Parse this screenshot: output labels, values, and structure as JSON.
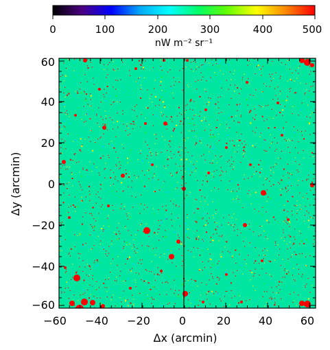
{
  "colorbar": {
    "tick_labels": [
      "0",
      "100",
      "200",
      "300",
      "400",
      "500"
    ],
    "range": [
      0,
      500
    ],
    "unit_label": "nW m⁻² sr⁻¹",
    "colormap": [
      "#000000",
      "#4b0082",
      "#0000ff",
      "#00aaff",
      "#00ffff",
      "#00ff66",
      "#66ff00",
      "#ffff00",
      "#ff8800",
      "#ff0000"
    ]
  },
  "map": {
    "xlabel": "Δx (arcmin)",
    "ylabel": "Δy (arcmin)",
    "x_tick_labels": [
      "−60",
      "−40",
      "−20",
      "0",
      "20",
      "40",
      "60"
    ],
    "y_tick_labels": [
      "60",
      "40",
      "20",
      "0",
      "−20",
      "−40",
      "−60"
    ],
    "x_range": [
      -63,
      62
    ],
    "y_range": [
      -63,
      63
    ],
    "background_color": "#00e6a0",
    "speckle_colors": [
      "#ff0000",
      "#ffee00",
      "#00ccff",
      "#22ee22"
    ],
    "divider_x": 0
  }
}
